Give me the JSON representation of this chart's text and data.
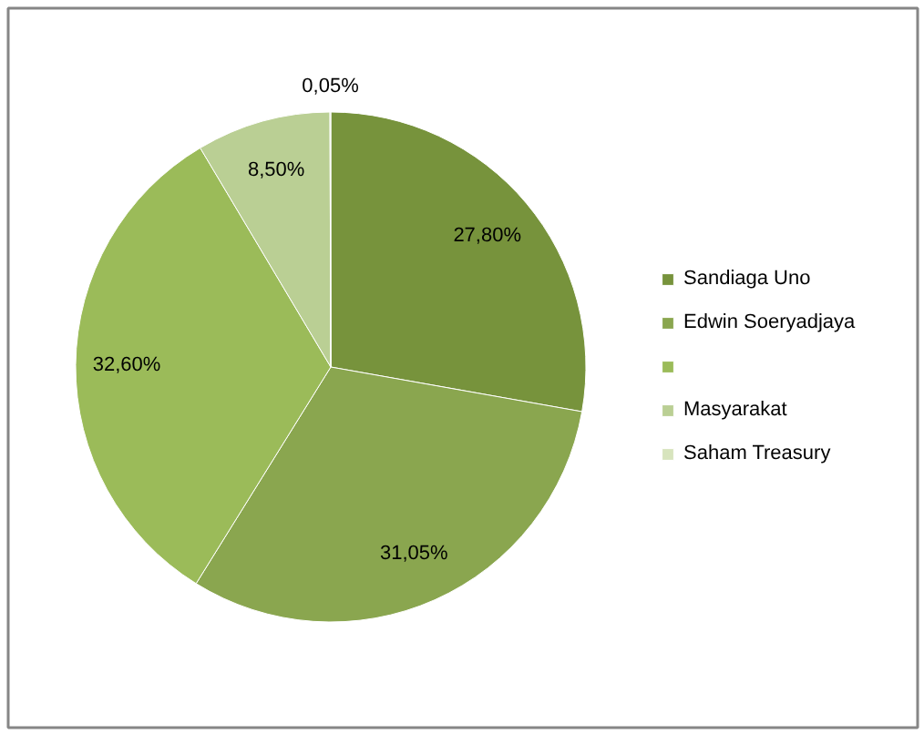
{
  "chart_data": {
    "type": "pie",
    "categories": [
      "Sandiaga Uno",
      "Edwin Soeryadjaya",
      null,
      "Masyarakat",
      "Saham Treasury"
    ],
    "values": [
      27.8,
      31.05,
      32.6,
      8.5,
      0.05
    ],
    "value_labels": [
      "27,80%",
      "31,05%",
      "32,60%",
      "8,50%",
      "0,05%"
    ],
    "colors": [
      "#77933c",
      "#8aa64f",
      "#9bbb59",
      "#bacf94",
      "#d7e4bd"
    ],
    "legend": "right"
  }
}
